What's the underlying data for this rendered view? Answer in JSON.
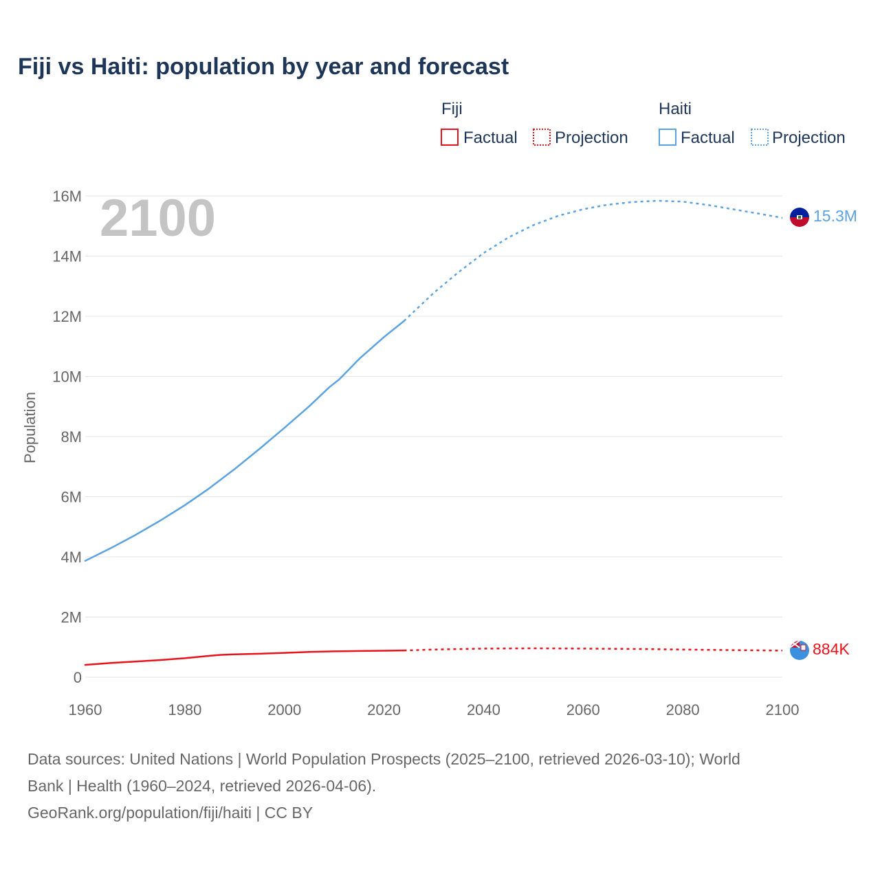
{
  "chart_data": {
    "type": "line",
    "title": "Fiji vs Haiti: population by year and forecast",
    "ylabel": "Population",
    "xlabel": "",
    "xlim": [
      1960,
      2100
    ],
    "ylim": [
      0,
      16000000
    ],
    "x_ticks": [
      1960,
      1980,
      2000,
      2020,
      2040,
      2060,
      2080,
      2100
    ],
    "x_tick_labels": [
      "1960",
      "1980",
      "2000",
      "2020",
      "2040",
      "2060",
      "2080",
      "2100"
    ],
    "y_ticks": [
      0,
      2000000,
      4000000,
      6000000,
      8000000,
      10000000,
      12000000,
      14000000,
      16000000
    ],
    "y_tick_labels": [
      "0",
      "2M",
      "4M",
      "6M",
      "8M",
      "10M",
      "12M",
      "14M",
      "16M"
    ],
    "grid": true,
    "current_year_label": "2100",
    "legend": {
      "placement": "top-right",
      "groups": [
        {
          "name": "Fiji",
          "items": [
            "Factual",
            "Projection"
          ]
        },
        {
          "name": "Haiti",
          "items": [
            "Factual",
            "Projection"
          ]
        }
      ]
    },
    "series": [
      {
        "name": "Haiti",
        "color": "#5ba3e0",
        "end_label": "15.3M",
        "factual": {
          "x": [
            1960,
            1965,
            1970,
            1975,
            1980,
            1985,
            1990,
            1995,
            2000,
            2005,
            2009,
            2011,
            2015,
            2020,
            2024
          ],
          "values": [
            3870000,
            4280000,
            4720000,
            5200000,
            5720000,
            6290000,
            6920000,
            7590000,
            8290000,
            9010000,
            9640000,
            9900000,
            10580000,
            11310000,
            11840000
          ]
        },
        "projection": {
          "x": [
            2024,
            2030,
            2035,
            2040,
            2045,
            2050,
            2055,
            2060,
            2065,
            2070,
            2075,
            2080,
            2085,
            2090,
            2095,
            2100
          ],
          "values": [
            11840000,
            12780000,
            13470000,
            14100000,
            14620000,
            15030000,
            15340000,
            15560000,
            15710000,
            15800000,
            15840000,
            15810000,
            15700000,
            15560000,
            15420000,
            15270000
          ]
        }
      },
      {
        "name": "Fiji",
        "color": "#e8121a",
        "end_label": "884K",
        "factual": {
          "x": [
            1960,
            1965,
            1970,
            1975,
            1980,
            1985,
            1987,
            1990,
            1995,
            2000,
            2005,
            2010,
            2015,
            2020,
            2024
          ],
          "values": [
            410000,
            470000,
            520000,
            570000,
            630000,
            710000,
            740000,
            760000,
            780000,
            810000,
            840000,
            860000,
            870000,
            880000,
            890000
          ]
        },
        "projection": {
          "x": [
            2024,
            2030,
            2040,
            2050,
            2060,
            2070,
            2080,
            2090,
            2100
          ],
          "values": [
            890000,
            920000,
            950000,
            960000,
            950000,
            940000,
            920000,
            900000,
            884000
          ]
        }
      }
    ]
  },
  "footer": {
    "source_line1": "Data sources: United Nations | World Population Prospects (2025–2100, retrieved 2026-03-10); World",
    "source_line2": "Bank | Health (1960–2024, retrieved 2026-04-06).",
    "attribution": "GeoRank.org/population/fiji/haiti | CC BY"
  },
  "colors": {
    "fiji": "#e8121a",
    "haiti": "#5ba3e0",
    "title": "#1d3557",
    "axis_text": "#666666",
    "watermark": "#c4c4c4"
  },
  "icons": {
    "haiti_flag": "haiti-flag-icon",
    "fiji_flag": "fiji-flag-icon"
  }
}
